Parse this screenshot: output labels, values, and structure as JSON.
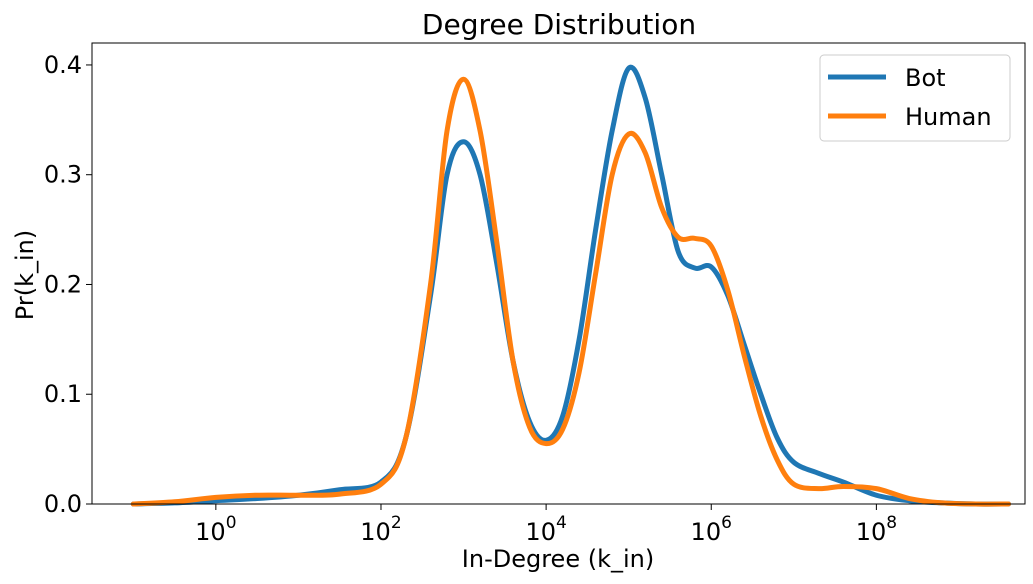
{
  "chart_data": {
    "type": "line",
    "title": "Degree Distribution",
    "xlabel": "In-Degree (k_in)",
    "ylabel": "Pr(k_in)",
    "xscale": "log",
    "x_exponents_range": [
      -1.5,
      9.8
    ],
    "ylim": [
      0.0,
      0.42
    ],
    "x_ticks": [
      {
        "base": "10",
        "exp": "0",
        "value": 1
      },
      {
        "base": "10",
        "exp": "2",
        "value": 100
      },
      {
        "base": "10",
        "exp": "4",
        "value": 10000
      },
      {
        "base": "10",
        "exp": "6",
        "value": 1000000
      },
      {
        "base": "10",
        "exp": "8",
        "value": 100000000
      }
    ],
    "y_ticks": [
      {
        "label": "0.0",
        "value": 0.0
      },
      {
        "label": "0.1",
        "value": 0.1
      },
      {
        "label": "0.2",
        "value": 0.2
      },
      {
        "label": "0.3",
        "value": 0.3
      },
      {
        "label": "0.4",
        "value": 0.4
      }
    ],
    "grid": false,
    "legend_position": "top-right",
    "series": [
      {
        "name": "Bot",
        "color": "#1f77b4",
        "log10_x": [
          -1.0,
          -0.5,
          0.0,
          0.5,
          1.0,
          1.5,
          2.0,
          2.3,
          2.6,
          2.8,
          3.0,
          3.2,
          3.4,
          3.6,
          3.8,
          4.0,
          4.2,
          4.4,
          4.6,
          4.8,
          5.0,
          5.2,
          5.4,
          5.6,
          5.8,
          6.0,
          6.2,
          6.4,
          6.6,
          6.8,
          7.0,
          7.3,
          7.6,
          8.0,
          8.4,
          8.8,
          9.2,
          9.6
        ],
        "y": [
          0.0,
          0.001,
          0.003,
          0.005,
          0.008,
          0.013,
          0.02,
          0.06,
          0.19,
          0.3,
          0.33,
          0.3,
          0.22,
          0.13,
          0.075,
          0.058,
          0.08,
          0.15,
          0.25,
          0.34,
          0.397,
          0.37,
          0.3,
          0.23,
          0.215,
          0.216,
          0.19,
          0.145,
          0.1,
          0.06,
          0.038,
          0.028,
          0.02,
          0.008,
          0.003,
          0.001,
          0.0,
          0.0
        ]
      },
      {
        "name": "Human",
        "color": "#ff7f0e",
        "log10_x": [
          -1.0,
          -0.5,
          0.0,
          0.5,
          1.0,
          1.5,
          2.0,
          2.3,
          2.6,
          2.8,
          3.0,
          3.2,
          3.4,
          3.6,
          3.8,
          4.0,
          4.2,
          4.4,
          4.6,
          4.8,
          5.0,
          5.2,
          5.4,
          5.6,
          5.8,
          6.0,
          6.2,
          6.4,
          6.6,
          6.8,
          7.0,
          7.3,
          7.6,
          8.0,
          8.4,
          8.8,
          9.2,
          9.6
        ],
        "y": [
          0.0,
          0.002,
          0.006,
          0.008,
          0.008,
          0.009,
          0.018,
          0.06,
          0.2,
          0.34,
          0.387,
          0.34,
          0.24,
          0.13,
          0.07,
          0.055,
          0.068,
          0.12,
          0.21,
          0.3,
          0.337,
          0.32,
          0.27,
          0.243,
          0.242,
          0.235,
          0.195,
          0.135,
          0.08,
          0.04,
          0.018,
          0.014,
          0.016,
          0.014,
          0.005,
          0.001,
          0.0,
          0.0
        ]
      }
    ]
  }
}
